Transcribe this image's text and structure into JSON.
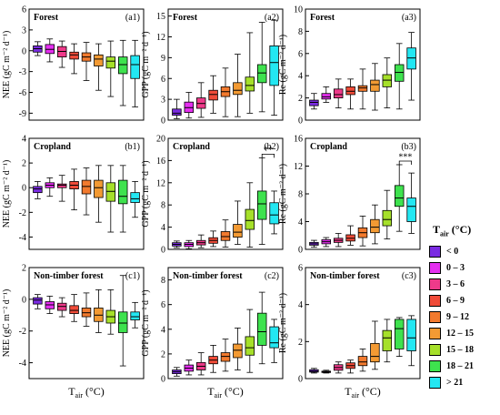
{
  "legend": {
    "title": "T",
    "title_sub": "air",
    "title_unit": " (°C)",
    "classes": [
      {
        "label": "< 0",
        "color": "#7a2be2"
      },
      {
        "label": "0 – 3",
        "color": "#e52ff0"
      },
      {
        "label": "3 – 6",
        "color": "#ee3a8a"
      },
      {
        "label": "6 – 9",
        "color": "#f04b38"
      },
      {
        "label": "9 – 12",
        "color": "#f27a2e"
      },
      {
        "label": "12 – 15",
        "color": "#f39a33"
      },
      {
        "label": "15 – 18",
        "color": "#a6e02a"
      },
      {
        "label": "18 – 21",
        "color": "#3ee24e"
      },
      {
        "label": "> 21",
        "color": "#23e7f2"
      }
    ]
  },
  "chart_data": [
    {
      "id": "a1",
      "type": "box",
      "land": "Forest",
      "panel_label": "(a1)",
      "ylabel": "NEE (gC m⁻² d⁻¹)",
      "xlabel": "",
      "ylim": [
        -10,
        6
      ],
      "yticks": [
        -9,
        -6,
        -3,
        0,
        3,
        6
      ],
      "annotation": "",
      "boxes": [
        [
          -0.7,
          -0.2,
          0.3,
          0.7,
          1.3
        ],
        [
          -1.6,
          -0.4,
          0.2,
          0.9,
          1.7
        ],
        [
          -2.4,
          -0.9,
          -0.1,
          0.6,
          1.4
        ],
        [
          -3.3,
          -1.2,
          -0.6,
          -0.2,
          1.0
        ],
        [
          -4.3,
          -1.5,
          -0.9,
          -0.3,
          1.2
        ],
        [
          -5.7,
          -2.2,
          -1.2,
          -0.6,
          1.0
        ],
        [
          -6.6,
          -2.5,
          -1.5,
          -0.9,
          1.4
        ],
        [
          -7.9,
          -3.3,
          -2.0,
          -0.9,
          1.5
        ],
        [
          -8.1,
          -4.0,
          -2.0,
          -0.7,
          1.5
        ]
      ]
    },
    {
      "id": "a2",
      "type": "box",
      "land": "Forest",
      "panel_label": "(a2)",
      "ylabel": "GPP (gC m⁻² d⁻¹)",
      "xlabel": "",
      "ylim": [
        0,
        16
      ],
      "yticks": [
        0,
        3,
        6,
        9,
        12,
        15
      ],
      "annotation": "",
      "boxes": [
        [
          0.2,
          0.7,
          1.0,
          1.6,
          3.0
        ],
        [
          0.3,
          1.1,
          1.8,
          2.6,
          4.0
        ],
        [
          0.4,
          1.7,
          2.4,
          3.2,
          5.4
        ],
        [
          1.0,
          2.9,
          3.7,
          4.3,
          6.4
        ],
        [
          0.5,
          3.4,
          4.1,
          4.8,
          7.5
        ],
        [
          0.5,
          3.7,
          4.3,
          5.4,
          9.5
        ],
        [
          1.0,
          4.2,
          5.0,
          6.2,
          12.6
        ],
        [
          1.2,
          5.4,
          6.8,
          8.0,
          14.1
        ],
        [
          0.7,
          5.0,
          8.3,
          10.7,
          14.4
        ]
      ]
    },
    {
      "id": "a3",
      "type": "box",
      "land": "Forest",
      "panel_label": "(a3)",
      "ylabel": "Re (gC m⁻² d⁻¹)",
      "xlabel": "",
      "ylim": [
        0,
        10
      ],
      "yticks": [
        0,
        2,
        4,
        6,
        8,
        10
      ],
      "annotation": "",
      "boxes": [
        [
          1.0,
          1.3,
          1.6,
          1.8,
          2.4
        ],
        [
          1.6,
          1.9,
          2.1,
          2.4,
          3.0
        ],
        [
          1.1,
          2.0,
          2.3,
          2.8,
          3.7
        ],
        [
          1.0,
          2.3,
          2.6,
          3.0,
          3.7
        ],
        [
          1.0,
          2.6,
          2.9,
          3.1,
          4.6
        ],
        [
          0.9,
          2.6,
          3.2,
          3.6,
          5.1
        ],
        [
          1.1,
          3.0,
          3.6,
          4.1,
          5.6
        ],
        [
          1.0,
          3.5,
          4.3,
          5.0,
          6.9
        ],
        [
          1.8,
          4.6,
          5.6,
          6.5,
          7.9
        ]
      ]
    },
    {
      "id": "b1",
      "type": "box",
      "land": "Cropland",
      "panel_label": "(b1)",
      "ylabel": "NEE (gC m⁻² d⁻¹)",
      "xlabel": "",
      "ylim": [
        -5,
        4
      ],
      "yticks": [
        -4,
        -2,
        0,
        2,
        4
      ],
      "annotation": "",
      "boxes": [
        [
          -0.9,
          -0.4,
          -0.1,
          0.1,
          0.5
        ],
        [
          -0.7,
          0.0,
          0.2,
          0.4,
          0.8
        ],
        [
          -1.1,
          0.0,
          0.2,
          0.3,
          1.0
        ],
        [
          -1.8,
          -0.1,
          0.2,
          0.5,
          1.5
        ],
        [
          -2.2,
          -0.5,
          0.1,
          0.6,
          1.6
        ],
        [
          -2.8,
          -0.8,
          0.0,
          0.6,
          1.8
        ],
        [
          -3.6,
          -1.1,
          -0.3,
          0.4,
          1.8
        ],
        [
          -3.6,
          -1.3,
          -0.7,
          0.6,
          1.8
        ],
        [
          -2.4,
          -1.2,
          -0.9,
          -0.4,
          0.5
        ]
      ]
    },
    {
      "id": "b2",
      "type": "box",
      "land": "Cropland",
      "panel_label": "(b2)",
      "ylabel": "GPP (gC m⁻² d⁻¹)",
      "xlabel": "",
      "ylim": [
        0,
        20
      ],
      "yticks": [
        0,
        4,
        8,
        12,
        16,
        20
      ],
      "annotation": "**",
      "boxes": [
        [
          0.3,
          0.6,
          0.9,
          1.2,
          1.5
        ],
        [
          0.1,
          0.5,
          0.9,
          1.2,
          1.6
        ],
        [
          0.3,
          0.8,
          1.2,
          1.6,
          2.6
        ],
        [
          0.5,
          1.1,
          1.6,
          2.1,
          3.3
        ],
        [
          0.4,
          1.6,
          2.3,
          3.2,
          5.3
        ],
        [
          0.9,
          2.2,
          3.1,
          4.5,
          8.7
        ],
        [
          0.4,
          3.6,
          5.2,
          7.2,
          12.0
        ],
        [
          0.9,
          5.4,
          8.2,
          10.5,
          16.5
        ],
        [
          2.8,
          4.6,
          6.2,
          8.4,
          10.5
        ]
      ]
    },
    {
      "id": "b3",
      "type": "box",
      "land": "Cropland",
      "panel_label": "(b3)",
      "ylabel": "Re (gC m⁻² d⁻¹)",
      "xlabel": "",
      "ylim": [
        0,
        16
      ],
      "yticks": [
        0,
        4,
        8,
        12,
        16
      ],
      "annotation": "***",
      "boxes": [
        [
          0.3,
          0.6,
          0.8,
          1.0,
          1.3
        ],
        [
          0.4,
          0.8,
          1.1,
          1.4,
          1.7
        ],
        [
          0.4,
          1.0,
          1.3,
          1.6,
          2.3
        ],
        [
          0.6,
          1.2,
          1.6,
          2.1,
          3.4
        ],
        [
          0.5,
          1.7,
          2.4,
          3.1,
          4.8
        ],
        [
          0.8,
          2.4,
          3.2,
          4.3,
          6.4
        ],
        [
          1.5,
          3.4,
          4.3,
          5.6,
          8.5
        ],
        [
          2.6,
          6.2,
          7.4,
          9.2,
          12.2
        ],
        [
          2.3,
          4.0,
          6.2,
          7.4,
          11.0
        ]
      ]
    },
    {
      "id": "c1",
      "type": "box",
      "land": "Non-timber forest",
      "panel_label": "(c1)",
      "ylabel": "NEE (gC m⁻² d⁻¹)",
      "xlabel": "",
      "ylim": [
        -5,
        2
      ],
      "yticks": [
        -4,
        -2,
        0,
        2
      ],
      "annotation": "",
      "boxes": [
        [
          -0.6,
          -0.3,
          -0.05,
          0.1,
          0.3
        ],
        [
          -0.9,
          -0.6,
          -0.35,
          -0.15,
          0.2
        ],
        [
          -1.1,
          -0.7,
          -0.45,
          -0.25,
          0.1
        ],
        [
          -1.4,
          -0.9,
          -0.7,
          -0.4,
          0.3
        ],
        [
          -1.7,
          -1.1,
          -0.85,
          -0.55,
          0.4
        ],
        [
          -2.1,
          -1.4,
          -1.0,
          -0.55,
          0.6
        ],
        [
          -2.2,
          -1.5,
          -1.1,
          -0.7,
          0.6
        ],
        [
          -4.2,
          -2.1,
          -1.5,
          -0.8,
          1.5
        ],
        [
          -1.8,
          -1.3,
          -1.1,
          -0.8,
          -0.2
        ]
      ]
    },
    {
      "id": "c2",
      "type": "box",
      "land": "Non-timber forest",
      "panel_label": "(c2)",
      "ylabel": "GPP (gC m⁻² d⁻¹)",
      "xlabel": "",
      "ylim": [
        0,
        9
      ],
      "yticks": [
        0,
        2,
        4,
        6,
        8
      ],
      "annotation": "",
      "boxes": [
        [
          0.2,
          0.4,
          0.55,
          0.7,
          0.9
        ],
        [
          0.3,
          0.6,
          0.85,
          1.1,
          1.5
        ],
        [
          0.3,
          0.7,
          1.0,
          1.3,
          2.1
        ],
        [
          0.5,
          1.2,
          1.5,
          1.8,
          2.7
        ],
        [
          0.6,
          1.4,
          1.8,
          2.1,
          3.2
        ],
        [
          0.7,
          1.7,
          2.3,
          2.8,
          4.1
        ],
        [
          0.5,
          1.9,
          2.5,
          3.4,
          5.6
        ],
        [
          1.2,
          2.7,
          3.8,
          5.3,
          7.0
        ],
        [
          1.3,
          2.5,
          2.9,
          4.2,
          4.8
        ]
      ]
    },
    {
      "id": "c3",
      "type": "box",
      "land": "Non-timber forest",
      "panel_label": "(c3)",
      "ylabel": "Re (gC m⁻² d⁻¹)",
      "xlabel": "",
      "ylim": [
        0,
        6
      ],
      "yticks": [
        0,
        2,
        4,
        6
      ],
      "annotation": "",
      "boxes": [
        [
          0.3,
          0.35,
          0.4,
          0.48,
          0.55
        ],
        [
          0.3,
          0.33,
          0.37,
          0.4,
          0.45
        ],
        [
          0.3,
          0.45,
          0.6,
          0.75,
          0.9
        ],
        [
          0.3,
          0.55,
          0.7,
          0.85,
          1.0
        ],
        [
          0.4,
          0.7,
          0.9,
          1.2,
          1.6
        ],
        [
          0.5,
          0.9,
          1.2,
          1.9,
          3.1
        ],
        [
          0.9,
          1.5,
          2.2,
          2.6,
          3.2
        ],
        [
          1.2,
          1.6,
          2.7,
          3.2,
          3.3
        ],
        [
          0.7,
          1.5,
          2.2,
          3.2,
          3.4
        ]
      ]
    }
  ],
  "xaxis_title": {
    "main": "T",
    "sub": "air",
    "unit": " (°C)"
  }
}
